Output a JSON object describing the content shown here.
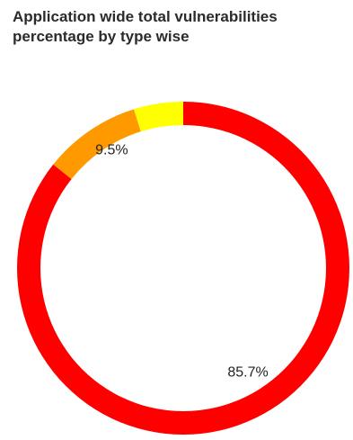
{
  "chart_data": {
    "type": "pie",
    "donut": true,
    "title": "Application wide total vulnerabilities percentage by type wise",
    "slices": [
      {
        "label": "",
        "value": 85.7,
        "value_label": "85.7%",
        "color": "#ff0000"
      },
      {
        "label": "",
        "value": 9.5,
        "value_label": "9.5%",
        "color": "#ff9900"
      },
      {
        "label": "",
        "value": 4.8,
        "value_label": "",
        "color": "#ffff00"
      }
    ],
    "legend": "none"
  }
}
